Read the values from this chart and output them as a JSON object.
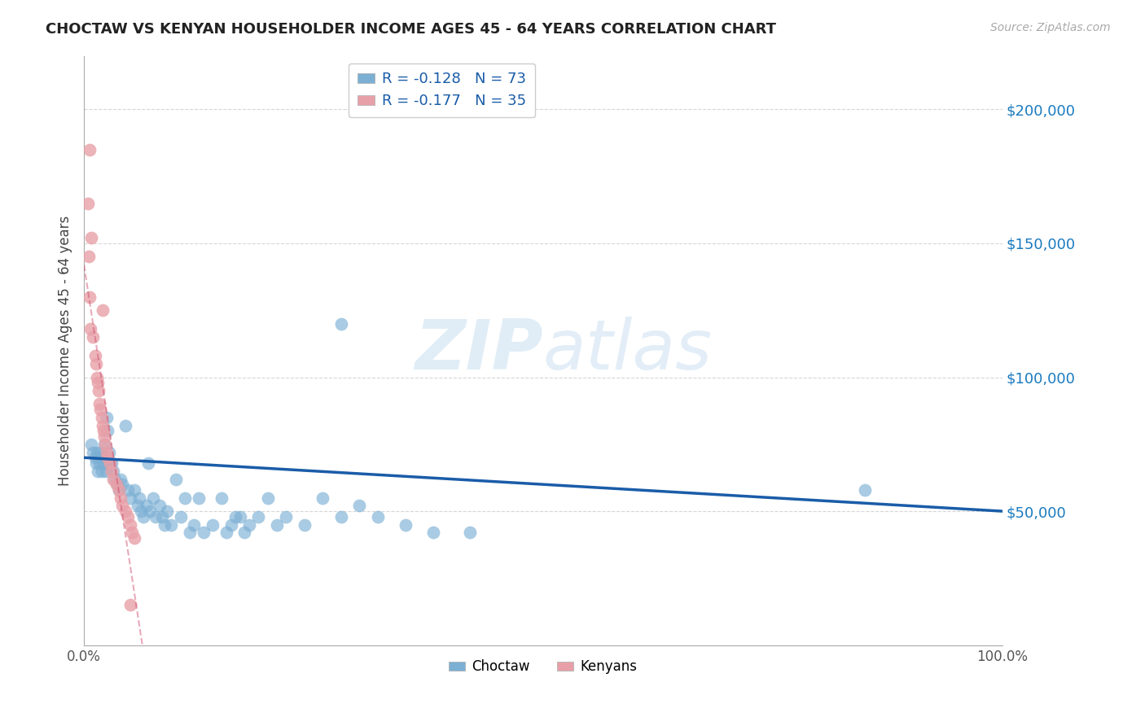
{
  "title": "CHOCTAW VS KENYAN HOUSEHOLDER INCOME AGES 45 - 64 YEARS CORRELATION CHART",
  "source": "Source: ZipAtlas.com",
  "ylabel": "Householder Income Ages 45 - 64 years",
  "xlim": [
    0,
    1.0
  ],
  "ylim": [
    0,
    220000
  ],
  "yticks": [
    0,
    50000,
    100000,
    150000,
    200000
  ],
  "ytick_labels": [
    "",
    "$50,000",
    "$100,000",
    "$150,000",
    "$200,000"
  ],
  "xticks": [
    0,
    0.25,
    0.5,
    0.75,
    1.0
  ],
  "xtick_labels": [
    "0.0%",
    "",
    "",
    "",
    "100.0%"
  ],
  "background_color": "#ffffff",
  "grid_color": "#cccccc",
  "choctaw_color": "#7bafd4",
  "kenyan_color": "#e8a0a8",
  "choctaw_R": -0.128,
  "choctaw_N": 73,
  "kenyan_R": -0.177,
  "kenyan_N": 35,
  "choctaw_line_color": "#1a5ca8",
  "kenyan_line_color": "#cc4466",
  "choctaw_x": [
    0.008,
    0.01,
    0.012,
    0.013,
    0.014,
    0.015,
    0.016,
    0.017,
    0.018,
    0.019,
    0.02,
    0.021,
    0.022,
    0.023,
    0.024,
    0.025,
    0.026,
    0.027,
    0.028,
    0.03,
    0.032,
    0.034,
    0.036,
    0.038,
    0.04,
    0.042,
    0.045,
    0.048,
    0.05,
    0.055,
    0.058,
    0.06,
    0.062,
    0.065,
    0.068,
    0.07,
    0.072,
    0.075,
    0.078,
    0.082,
    0.085,
    0.088,
    0.09,
    0.095,
    0.1,
    0.105,
    0.11,
    0.115,
    0.12,
    0.125,
    0.13,
    0.14,
    0.15,
    0.155,
    0.16,
    0.165,
    0.17,
    0.175,
    0.18,
    0.19,
    0.2,
    0.21,
    0.22,
    0.24,
    0.26,
    0.28,
    0.3,
    0.32,
    0.35,
    0.38,
    0.42,
    0.28,
    0.85
  ],
  "choctaw_y": [
    75000,
    72000,
    70000,
    68000,
    72000,
    65000,
    70000,
    68000,
    72000,
    65000,
    70000,
    68000,
    75000,
    68000,
    65000,
    85000,
    80000,
    72000,
    68000,
    68000,
    65000,
    62000,
    60000,
    58000,
    62000,
    60000,
    82000,
    58000,
    55000,
    58000,
    52000,
    55000,
    50000,
    48000,
    52000,
    68000,
    50000,
    55000,
    48000,
    52000,
    48000,
    45000,
    50000,
    45000,
    62000,
    48000,
    55000,
    42000,
    45000,
    55000,
    42000,
    45000,
    55000,
    42000,
    45000,
    48000,
    48000,
    42000,
    45000,
    48000,
    55000,
    45000,
    48000,
    45000,
    55000,
    48000,
    52000,
    48000,
    45000,
    42000,
    42000,
    120000,
    58000
  ],
  "kenyan_x": [
    0.006,
    0.008,
    0.01,
    0.012,
    0.013,
    0.014,
    0.015,
    0.016,
    0.017,
    0.018,
    0.019,
    0.02,
    0.021,
    0.022,
    0.023,
    0.025,
    0.026,
    0.028,
    0.03,
    0.032,
    0.035,
    0.038,
    0.04,
    0.042,
    0.045,
    0.048,
    0.05,
    0.052,
    0.055,
    0.004,
    0.005,
    0.006,
    0.007,
    0.05,
    0.02
  ],
  "kenyan_y": [
    185000,
    152000,
    115000,
    108000,
    105000,
    100000,
    98000,
    95000,
    90000,
    88000,
    85000,
    82000,
    80000,
    78000,
    75000,
    72000,
    70000,
    68000,
    65000,
    62000,
    60000,
    58000,
    55000,
    52000,
    50000,
    48000,
    45000,
    42000,
    40000,
    165000,
    145000,
    130000,
    118000,
    15000,
    125000
  ]
}
